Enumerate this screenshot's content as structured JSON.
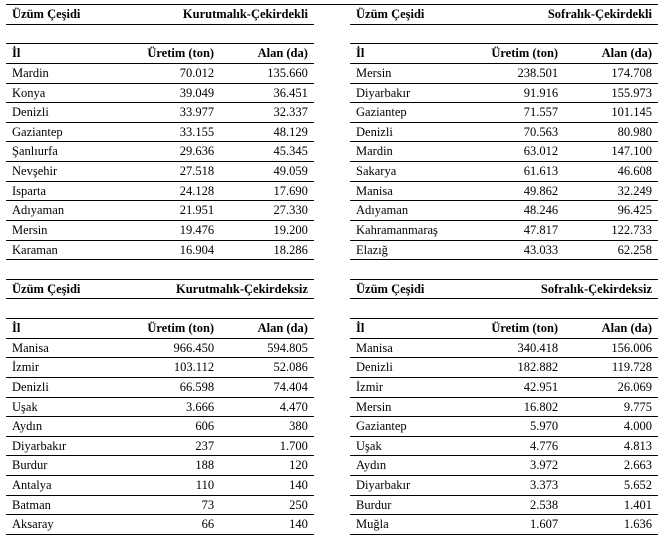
{
  "labels": {
    "uzum_cesidi": "Üzüm Çeşidi",
    "il": "İl",
    "uretim": "Üretim (ton)",
    "alan": "Alan (da)"
  },
  "sections": [
    {
      "left_title": "Kurutmalık-Çekirdekli",
      "right_title": "Sofralık-Çekirdekli",
      "left_rows": [
        {
          "il": "Mardin",
          "u": "70.012",
          "a": "135.660"
        },
        {
          "il": "Konya",
          "u": "39.049",
          "a": "36.451"
        },
        {
          "il": "Denizli",
          "u": "33.977",
          "a": "32.337"
        },
        {
          "il": "Gaziantep",
          "u": "33.155",
          "a": "48.129"
        },
        {
          "il": "Şanlıurfa",
          "u": "29.636",
          "a": "45.345"
        },
        {
          "il": "Nevşehir",
          "u": "27.518",
          "a": "49.059"
        },
        {
          "il": "Isparta",
          "u": "24.128",
          "a": "17.690"
        },
        {
          "il": "Adıyaman",
          "u": "21.951",
          "a": "27.330"
        },
        {
          "il": "Mersin",
          "u": "19.476",
          "a": "19.200"
        },
        {
          "il": "Karaman",
          "u": "16.904",
          "a": "18.286"
        }
      ],
      "right_rows": [
        {
          "il": "Mersin",
          "u": "238.501",
          "a": "174.708"
        },
        {
          "il": "Diyarbakır",
          "u": "91.916",
          "a": "155.973"
        },
        {
          "il": "Gaziantep",
          "u": "71.557",
          "a": "101.145"
        },
        {
          "il": "Denizli",
          "u": "70.563",
          "a": "80.980"
        },
        {
          "il": "Mardin",
          "u": "63.012",
          "a": "147.100"
        },
        {
          "il": "Sakarya",
          "u": "61.613",
          "a": "46.608"
        },
        {
          "il": "Manisa",
          "u": "49.862",
          "a": "32.249"
        },
        {
          "il": "Adıyaman",
          "u": "48.246",
          "a": "96.425"
        },
        {
          "il": "Kahramanmaraş",
          "u": "47.817",
          "a": "122.733"
        },
        {
          "il": "Elazığ",
          "u": "43.033",
          "a": "62.258"
        }
      ]
    },
    {
      "left_title": "Kurutmalık-Çekirdeksiz",
      "right_title": "Sofralık-Çekirdeksiz",
      "left_rows": [
        {
          "il": "Manisa",
          "u": "966.450",
          "a": "594.805"
        },
        {
          "il": "İzmir",
          "u": "103.112",
          "a": "52.086"
        },
        {
          "il": "Denizli",
          "u": "66.598",
          "a": "74.404"
        },
        {
          "il": "Uşak",
          "u": "3.666",
          "a": "4.470"
        },
        {
          "il": "Aydın",
          "u": "606",
          "a": "380"
        },
        {
          "il": "Diyarbakır",
          "u": "237",
          "a": "1.700"
        },
        {
          "il": "Burdur",
          "u": "188",
          "a": "120"
        },
        {
          "il": "Antalya",
          "u": "110",
          "a": "140"
        },
        {
          "il": "Batman",
          "u": "73",
          "a": "250"
        },
        {
          "il": "Aksaray",
          "u": "66",
          "a": "140"
        }
      ],
      "right_rows": [
        {
          "il": "Manisa",
          "u": "340.418",
          "a": "156.006"
        },
        {
          "il": "Denizli",
          "u": "182.882",
          "a": "119.728"
        },
        {
          "il": "İzmir",
          "u": "42.951",
          "a": "26.069"
        },
        {
          "il": "Mersin",
          "u": "16.802",
          "a": "9.775"
        },
        {
          "il": "Gaziantep",
          "u": "5.970",
          "a": "4.000"
        },
        {
          "il": "Uşak",
          "u": "4.776",
          "a": "4.813"
        },
        {
          "il": "Aydın",
          "u": "3.972",
          "a": "2.663"
        },
        {
          "il": "Diyarbakır",
          "u": "3.373",
          "a": "5.652"
        },
        {
          "il": "Burdur",
          "u": "2.538",
          "a": "1.401"
        },
        {
          "il": "Muğla",
          "u": "1.607",
          "a": "1.636"
        }
      ]
    }
  ]
}
